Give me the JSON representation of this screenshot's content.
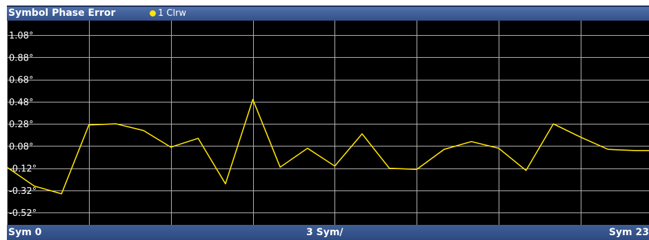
{
  "header": {
    "title": "Symbol Phase Error",
    "trace_label": "1 Clrw",
    "trace_dot_color": "#ffe500"
  },
  "footer": {
    "x_start": "Sym 0",
    "x_center": "3 Sym/",
    "x_end": "Sym 23"
  },
  "colors": {
    "background": "#000000",
    "grid": "#b4b4b4",
    "trace": "#ffe500",
    "title_bar": "#3f5f98"
  },
  "chart_data": {
    "type": "line",
    "title": "Symbol Phase Error",
    "xlabel": "3 Sym/",
    "ylabel": "",
    "xlim": [
      0,
      23.5
    ],
    "ylim": [
      -0.63,
      1.21
    ],
    "y_tick_labels": [
      "1.08°",
      "0.88°",
      "0.68°",
      "0.48°",
      "0.28°",
      "0.08°",
      "-0.12°",
      "-0.32°",
      "-0.52°"
    ],
    "y_tick_values": [
      1.08,
      0.88,
      0.68,
      0.48,
      0.28,
      0.08,
      -0.12,
      -0.32,
      -0.52
    ],
    "x_grid_values": [
      0,
      3,
      6,
      9,
      12,
      15,
      18,
      21,
      24
    ],
    "grid": true,
    "series": [
      {
        "x": [
          0,
          1,
          2,
          3,
          4,
          5,
          6,
          7,
          8,
          9,
          10,
          11,
          12,
          13,
          14,
          15,
          16,
          17,
          18,
          19,
          20,
          21,
          22,
          23,
          23.5
        ],
        "values": [
          -0.11,
          -0.28,
          -0.35,
          0.27,
          0.28,
          0.22,
          0.07,
          0.15,
          -0.26,
          0.5,
          -0.11,
          0.06,
          -0.1,
          0.19,
          -0.12,
          -0.13,
          0.05,
          0.12,
          0.06,
          -0.14,
          0.28,
          0.16,
          0.05,
          0.04,
          0.04
        ]
      }
    ]
  }
}
